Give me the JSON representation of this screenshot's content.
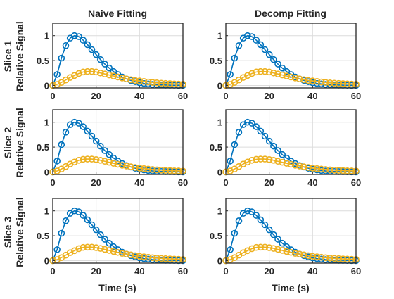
{
  "figure": {
    "column_titles": [
      "Naive Fitting",
      "Decomp Fitting"
    ],
    "row_labels": [
      "Slice 1",
      "Slice 2",
      "Slice 3"
    ],
    "ylabel": "Relative Signal",
    "xlabel": "Time (s)"
  },
  "colors": {
    "blue": "#0072BD",
    "yellow": "#EDB120",
    "axis": "#262626",
    "grid": "#DCDCDC"
  },
  "chart_data": [
    {
      "type": "line",
      "row": 1,
      "col": 1,
      "title": "Naive Fitting",
      "row_label": "Slice 1",
      "xlabel": "",
      "ylabel": "Relative Signal",
      "xlim": [
        0,
        60
      ],
      "ylim": [
        -0.05,
        1.25
      ],
      "xticks": [
        0,
        20,
        40,
        60
      ],
      "yticks": [
        0,
        0.5,
        1
      ],
      "grid": true,
      "markers": "open-circle",
      "series": [
        {
          "color": "#0072BD",
          "x": [
            0,
            2,
            4,
            6,
            8,
            10,
            12,
            14,
            16,
            18,
            20,
            22,
            24,
            26,
            28,
            30,
            32,
            34,
            36,
            38,
            40,
            42,
            44,
            46,
            48,
            50,
            52,
            54,
            56,
            58,
            60
          ],
          "y": [
            0,
            0.22,
            0.55,
            0.8,
            0.95,
            1.0,
            0.98,
            0.91,
            0.82,
            0.72,
            0.62,
            0.52,
            0.43,
            0.35,
            0.28,
            0.22,
            0.17,
            0.13,
            0.1,
            0.075,
            0.055,
            0.04,
            0.03,
            0.02,
            0.015,
            0.01,
            0.007,
            0.005,
            0.003,
            0.002,
            0.001
          ]
        },
        {
          "color": "#EDB120",
          "x": [
            0,
            2,
            4,
            6,
            8,
            10,
            12,
            14,
            16,
            18,
            20,
            22,
            24,
            26,
            28,
            30,
            32,
            34,
            36,
            38,
            40,
            42,
            44,
            46,
            48,
            50,
            52,
            54,
            56,
            58,
            60
          ],
          "y": [
            0,
            0.02,
            0.06,
            0.11,
            0.16,
            0.2,
            0.24,
            0.27,
            0.28,
            0.28,
            0.27,
            0.25,
            0.23,
            0.21,
            0.19,
            0.17,
            0.15,
            0.13,
            0.115,
            0.1,
            0.09,
            0.08,
            0.07,
            0.06,
            0.052,
            0.045,
            0.04,
            0.035,
            0.03,
            0.027,
            0.025
          ]
        }
      ]
    },
    {
      "type": "line",
      "row": 1,
      "col": 2,
      "title": "Decomp Fitting",
      "row_label": "Slice 1",
      "xlabel": "",
      "ylabel": "",
      "xlim": [
        0,
        60
      ],
      "ylim": [
        -0.05,
        1.25
      ],
      "xticks": [
        0,
        20,
        40,
        60
      ],
      "yticks": [
        0,
        0.5,
        1
      ],
      "grid": true,
      "markers": "open-circle",
      "series": [
        {
          "color": "#0072BD",
          "x": [
            0,
            2,
            4,
            6,
            8,
            10,
            12,
            14,
            16,
            18,
            20,
            22,
            24,
            26,
            28,
            30,
            32,
            34,
            36,
            38,
            40,
            42,
            44,
            46,
            48,
            50,
            52,
            54,
            56,
            58,
            60
          ],
          "y": [
            0,
            0.22,
            0.55,
            0.8,
            0.95,
            1.0,
            0.98,
            0.91,
            0.82,
            0.72,
            0.62,
            0.52,
            0.43,
            0.35,
            0.28,
            0.22,
            0.17,
            0.13,
            0.1,
            0.075,
            0.055,
            0.04,
            0.03,
            0.02,
            0.015,
            0.01,
            0.007,
            0.005,
            0.003,
            0.002,
            0.001
          ]
        },
        {
          "color": "#EDB120",
          "x": [
            0,
            2,
            4,
            6,
            8,
            10,
            12,
            14,
            16,
            18,
            20,
            22,
            24,
            26,
            28,
            30,
            32,
            34,
            36,
            38,
            40,
            42,
            44,
            46,
            48,
            50,
            52,
            54,
            56,
            58,
            60
          ],
          "y": [
            0,
            0.02,
            0.06,
            0.11,
            0.16,
            0.2,
            0.24,
            0.27,
            0.28,
            0.28,
            0.27,
            0.25,
            0.23,
            0.21,
            0.19,
            0.17,
            0.15,
            0.13,
            0.115,
            0.1,
            0.09,
            0.08,
            0.07,
            0.06,
            0.052,
            0.045,
            0.04,
            0.035,
            0.03,
            0.027,
            0.025
          ]
        }
      ]
    },
    {
      "type": "line",
      "row": 2,
      "col": 1,
      "title": "",
      "row_label": "Slice 2",
      "xlabel": "",
      "ylabel": "Relative Signal",
      "xlim": [
        0,
        60
      ],
      "ylim": [
        -0.05,
        1.25
      ],
      "xticks": [
        0,
        20,
        40,
        60
      ],
      "yticks": [
        0,
        0.5,
        1
      ],
      "grid": true,
      "markers": "open-circle",
      "series": [
        {
          "color": "#0072BD",
          "x": [
            0,
            2,
            4,
            6,
            8,
            10,
            12,
            14,
            16,
            18,
            20,
            22,
            24,
            26,
            28,
            30,
            32,
            34,
            36,
            38,
            40,
            42,
            44,
            46,
            48,
            50,
            52,
            54,
            56,
            58,
            60
          ],
          "y": [
            0,
            0.22,
            0.55,
            0.8,
            0.95,
            1.0,
            0.98,
            0.91,
            0.82,
            0.72,
            0.62,
            0.52,
            0.43,
            0.35,
            0.28,
            0.22,
            0.17,
            0.13,
            0.1,
            0.075,
            0.055,
            0.04,
            0.03,
            0.02,
            0.015,
            0.01,
            0.007,
            0.005,
            0.003,
            0.002,
            0.001
          ]
        },
        {
          "color": "#EDB120",
          "x": [
            0,
            2,
            4,
            6,
            8,
            10,
            12,
            14,
            16,
            18,
            20,
            22,
            24,
            26,
            28,
            30,
            32,
            34,
            36,
            38,
            40,
            42,
            44,
            46,
            48,
            50,
            52,
            54,
            56,
            58,
            60
          ],
          "y": [
            0,
            0.02,
            0.06,
            0.11,
            0.16,
            0.2,
            0.235,
            0.255,
            0.26,
            0.26,
            0.25,
            0.235,
            0.215,
            0.195,
            0.175,
            0.155,
            0.135,
            0.12,
            0.105,
            0.09,
            0.078,
            0.067,
            0.058,
            0.05,
            0.043,
            0.037,
            0.032,
            0.028,
            0.024,
            0.021,
            0.019
          ]
        }
      ]
    },
    {
      "type": "line",
      "row": 2,
      "col": 2,
      "title": "",
      "row_label": "Slice 2",
      "xlabel": "",
      "ylabel": "",
      "xlim": [
        0,
        60
      ],
      "ylim": [
        -0.05,
        1.25
      ],
      "xticks": [
        0,
        20,
        40,
        60
      ],
      "yticks": [
        0,
        0.5,
        1
      ],
      "grid": true,
      "markers": "open-circle",
      "series": [
        {
          "color": "#0072BD",
          "x": [
            0,
            2,
            4,
            6,
            8,
            10,
            12,
            14,
            16,
            18,
            20,
            22,
            24,
            26,
            28,
            30,
            32,
            34,
            36,
            38,
            40,
            42,
            44,
            46,
            48,
            50,
            52,
            54,
            56,
            58,
            60
          ],
          "y": [
            0,
            0.22,
            0.55,
            0.8,
            0.95,
            1.0,
            0.98,
            0.91,
            0.82,
            0.72,
            0.62,
            0.52,
            0.43,
            0.35,
            0.28,
            0.22,
            0.17,
            0.13,
            0.1,
            0.075,
            0.055,
            0.04,
            0.03,
            0.02,
            0.015,
            0.01,
            0.007,
            0.005,
            0.003,
            0.002,
            0.001
          ]
        },
        {
          "color": "#EDB120",
          "x": [
            0,
            2,
            4,
            6,
            8,
            10,
            12,
            14,
            16,
            18,
            20,
            22,
            24,
            26,
            28,
            30,
            32,
            34,
            36,
            38,
            40,
            42,
            44,
            46,
            48,
            50,
            52,
            54,
            56,
            58,
            60
          ],
          "y": [
            0,
            0.02,
            0.06,
            0.11,
            0.16,
            0.2,
            0.235,
            0.255,
            0.26,
            0.26,
            0.25,
            0.235,
            0.215,
            0.195,
            0.175,
            0.155,
            0.135,
            0.12,
            0.105,
            0.09,
            0.078,
            0.067,
            0.058,
            0.05,
            0.043,
            0.037,
            0.032,
            0.028,
            0.024,
            0.021,
            0.019
          ]
        }
      ]
    },
    {
      "type": "line",
      "row": 3,
      "col": 1,
      "title": "",
      "row_label": "Slice 3",
      "xlabel": "Time (s)",
      "ylabel": "Relative Signal",
      "xlim": [
        0,
        60
      ],
      "ylim": [
        -0.05,
        1.25
      ],
      "xticks": [
        0,
        20,
        40,
        60
      ],
      "yticks": [
        0,
        0.5,
        1
      ],
      "grid": true,
      "markers": "open-circle",
      "series": [
        {
          "color": "#0072BD",
          "x": [
            0,
            2,
            4,
            6,
            8,
            10,
            12,
            14,
            16,
            18,
            20,
            22,
            24,
            26,
            28,
            30,
            32,
            34,
            36,
            38,
            40,
            42,
            44,
            46,
            48,
            50,
            52,
            54,
            56,
            58,
            60
          ],
          "y": [
            0,
            0.22,
            0.55,
            0.8,
            0.95,
            1.0,
            0.98,
            0.91,
            0.82,
            0.72,
            0.62,
            0.52,
            0.43,
            0.35,
            0.28,
            0.22,
            0.17,
            0.13,
            0.1,
            0.075,
            0.055,
            0.04,
            0.03,
            0.02,
            0.015,
            0.01,
            0.007,
            0.005,
            0.003,
            0.002,
            0.001
          ]
        },
        {
          "color": "#EDB120",
          "x": [
            0,
            2,
            4,
            6,
            8,
            10,
            12,
            14,
            16,
            18,
            20,
            22,
            24,
            26,
            28,
            30,
            32,
            34,
            36,
            38,
            40,
            42,
            44,
            46,
            48,
            50,
            52,
            54,
            56,
            58,
            60
          ],
          "y": [
            0,
            0.02,
            0.06,
            0.11,
            0.16,
            0.2,
            0.24,
            0.265,
            0.27,
            0.27,
            0.26,
            0.245,
            0.225,
            0.205,
            0.185,
            0.165,
            0.145,
            0.13,
            0.115,
            0.1,
            0.088,
            0.077,
            0.067,
            0.058,
            0.05,
            0.044,
            0.039,
            0.034,
            0.03,
            0.027,
            0.024
          ]
        }
      ]
    },
    {
      "type": "line",
      "row": 3,
      "col": 2,
      "title": "",
      "row_label": "Slice 3",
      "xlabel": "Time (s)",
      "ylabel": "",
      "xlim": [
        0,
        60
      ],
      "ylim": [
        -0.05,
        1.25
      ],
      "xticks": [
        0,
        20,
        40,
        60
      ],
      "yticks": [
        0,
        0.5,
        1
      ],
      "grid": true,
      "markers": "open-circle",
      "series": [
        {
          "color": "#0072BD",
          "x": [
            0,
            2,
            4,
            6,
            8,
            10,
            12,
            14,
            16,
            18,
            20,
            22,
            24,
            26,
            28,
            30,
            32,
            34,
            36,
            38,
            40,
            42,
            44,
            46,
            48,
            50,
            52,
            54,
            56,
            58,
            60
          ],
          "y": [
            0,
            0.22,
            0.55,
            0.8,
            0.95,
            1.0,
            0.98,
            0.91,
            0.82,
            0.72,
            0.62,
            0.52,
            0.43,
            0.35,
            0.28,
            0.22,
            0.17,
            0.13,
            0.1,
            0.075,
            0.055,
            0.04,
            0.03,
            0.02,
            0.015,
            0.01,
            0.007,
            0.005,
            0.003,
            0.002,
            0.001
          ]
        },
        {
          "color": "#EDB120",
          "x": [
            0,
            2,
            4,
            6,
            8,
            10,
            12,
            14,
            16,
            18,
            20,
            22,
            24,
            26,
            28,
            30,
            32,
            34,
            36,
            38,
            40,
            42,
            44,
            46,
            48,
            50,
            52,
            54,
            56,
            58,
            60
          ],
          "y": [
            0,
            0.02,
            0.06,
            0.11,
            0.16,
            0.2,
            0.24,
            0.265,
            0.27,
            0.27,
            0.26,
            0.245,
            0.225,
            0.205,
            0.185,
            0.165,
            0.145,
            0.13,
            0.115,
            0.1,
            0.088,
            0.077,
            0.067,
            0.058,
            0.05,
            0.044,
            0.039,
            0.034,
            0.03,
            0.027,
            0.024
          ]
        }
      ]
    }
  ]
}
